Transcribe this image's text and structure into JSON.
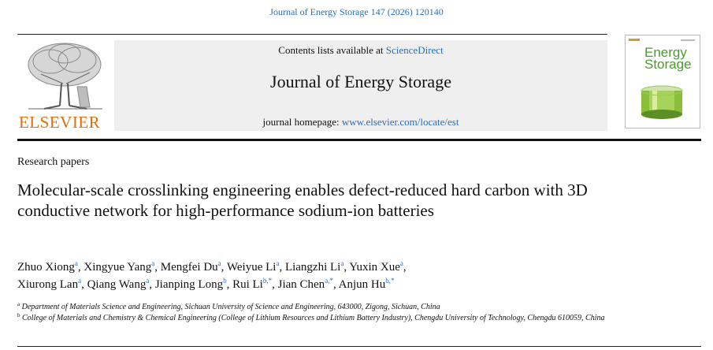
{
  "citation": "Journal of Energy Storage 147 (2026) 120140",
  "banner": {
    "contents_prefix": "Contents lists available at ",
    "contents_link": "ScienceDirect",
    "journal_title": "Journal of Energy Storage",
    "homepage_prefix": "journal homepage: ",
    "homepage_link": "www.elsevier.com/locate/est"
  },
  "publisher": {
    "name": "ELSEVIER",
    "logo_icon": "elsevier-tree-icon"
  },
  "cover": {
    "line1": "Energy",
    "line2": "Storage",
    "icon": "journal-cover-icon"
  },
  "article": {
    "type": "Research papers",
    "title": "Molecular-scale crosslinking engineering enables defect-reduced hard carbon with 3D conductive network for high-performance sodium-ion batteries"
  },
  "authors": [
    {
      "name": "Zhuo Xiong",
      "sup": "a",
      "sep": ", "
    },
    {
      "name": "Xingyue Yang",
      "sup": "a",
      "sep": ", "
    },
    {
      "name": "Mengfei Du",
      "sup": "a",
      "sep": ", "
    },
    {
      "name": "Weiyue Li",
      "sup": "a",
      "sep": ", "
    },
    {
      "name": "Liangzhi Li",
      "sup": "a",
      "sep": ", "
    },
    {
      "name": "Yuxin Xue",
      "sup": "a",
      "sep": ", "
    },
    {
      "name": "Xiurong Lan",
      "sup": "a",
      "sep": ", "
    },
    {
      "name": "Qiang Wang",
      "sup": "a",
      "sep": ", "
    },
    {
      "name": "Jianping Long",
      "sup": "b",
      "sep": ", "
    },
    {
      "name": "Rui Li",
      "sup": "b,*",
      "sep": ", "
    },
    {
      "name": "Jian Chen",
      "sup": "a,*",
      "sep": ", "
    },
    {
      "name": "Anjun Hu",
      "sup": "b,*",
      "sep": ""
    }
  ],
  "affiliations": [
    {
      "label": "a",
      "text": "Department of Materials Science and Engineering, Sichuan University of Science and Engineering, 643000, Zigong, Sichuan, China"
    },
    {
      "label": "b",
      "text": "College of Materials and Chemistry & Chemical Engineering (College of Lithium Resources and Lithium Battery Industry), Chengdu University of Technology, Chengdu 610059, China"
    }
  ],
  "colors": {
    "link": "#2a6ebb",
    "elsevier_orange": "#e46c0a",
    "cover_green": "#4b9a2f",
    "banner_bg": "#efefef"
  }
}
